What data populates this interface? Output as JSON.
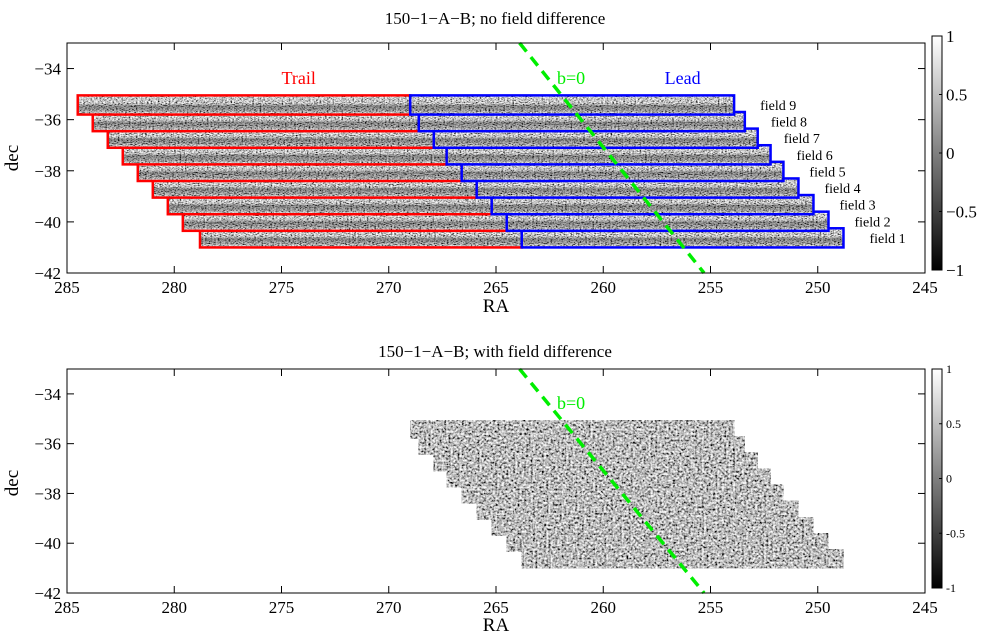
{
  "colors": {
    "trail": "#ff0000",
    "lead": "#0000ff",
    "galactic_plane": "#00ee00",
    "axis": "#000000",
    "background": "#ffffff"
  },
  "chart_data": [
    {
      "type": "heatmap",
      "title": "150−1−A−B; no field difference",
      "xlabel": "RA",
      "ylabel": "dec",
      "xlim": [
        285,
        245
      ],
      "ylim": [
        -42,
        -33
      ],
      "x_reversed": true,
      "xticks": [
        285,
        280,
        275,
        270,
        265,
        260,
        255,
        250,
        245
      ],
      "xtick_labels": [
        "285",
        "280",
        "275",
        "270",
        "265",
        "260",
        "255",
        "250",
        "245"
      ],
      "yticks": [
        -34,
        -36,
        -38,
        -40,
        -42
      ],
      "ytick_labels": [
        "−34",
        "−36",
        "−38",
        "−40",
        "−42"
      ],
      "grid": false,
      "colorbar": {
        "range": [
          -1,
          1
        ],
        "colormap": "gray",
        "ticks": [
          1,
          0.5,
          0,
          -0.5,
          -1
        ],
        "tick_labels": [
          "1",
          "0.5",
          "0",
          "−0.5",
          "−1"
        ]
      },
      "annotations": [
        {
          "text": "Trail",
          "color": "trail",
          "x": 274.2,
          "y": -34.6
        },
        {
          "text": "b=0",
          "color": "galactic_plane",
          "x": 261.5,
          "y": -34.6
        },
        {
          "text": "Lead",
          "color": "lead",
          "x": 256.3,
          "y": -34.6
        }
      ],
      "galactic_plane_line": {
        "label": "b=0",
        "x": [
          263.9,
          255.3
        ],
        "y": [
          -33.0,
          -42.0
        ]
      },
      "fields": [
        {
          "name": "field 1",
          "dec_range": [
            -41.0,
            -40.25
          ],
          "trail_ra": [
            278.8,
            263.8
          ],
          "lead_ra": [
            263.8,
            248.8
          ]
        },
        {
          "name": "field 2",
          "dec_range": [
            -40.35,
            -39.6
          ],
          "trail_ra": [
            279.6,
            264.5
          ],
          "lead_ra": [
            264.5,
            249.5
          ]
        },
        {
          "name": "field 3",
          "dec_range": [
            -39.7,
            -38.95
          ],
          "trail_ra": [
            280.3,
            265.2
          ],
          "lead_ra": [
            265.2,
            250.2
          ]
        },
        {
          "name": "field 4",
          "dec_range": [
            -39.05,
            -38.3
          ],
          "trail_ra": [
            281.0,
            265.9
          ],
          "lead_ra": [
            265.9,
            250.9
          ]
        },
        {
          "name": "field 5",
          "dec_range": [
            -38.4,
            -37.65
          ],
          "trail_ra": [
            281.7,
            266.6
          ],
          "lead_ra": [
            266.6,
            251.6
          ]
        },
        {
          "name": "field 6",
          "dec_range": [
            -37.75,
            -37.0
          ],
          "trail_ra": [
            282.4,
            267.3
          ],
          "lead_ra": [
            267.3,
            252.2
          ]
        },
        {
          "name": "field 7",
          "dec_range": [
            -37.1,
            -36.35
          ],
          "trail_ra": [
            283.1,
            267.9
          ],
          "lead_ra": [
            267.9,
            252.8
          ]
        },
        {
          "name": "field 8",
          "dec_range": [
            -36.45,
            -35.7
          ],
          "trail_ra": [
            283.8,
            268.6
          ],
          "lead_ra": [
            268.6,
            253.4
          ]
        },
        {
          "name": "field 9",
          "dec_range": [
            -35.8,
            -35.05
          ],
          "trail_ra": [
            284.5,
            269.0
          ],
          "lead_ra": [
            269.0,
            253.9
          ]
        }
      ]
    },
    {
      "type": "heatmap",
      "title": "150−1−A−B; with field difference",
      "xlabel": "RA",
      "ylabel": "dec",
      "xlim": [
        285,
        245
      ],
      "ylim": [
        -42,
        -33
      ],
      "x_reversed": true,
      "xticks": [
        285,
        280,
        275,
        270,
        265,
        260,
        255,
        250,
        245
      ],
      "xtick_labels": [
        "285",
        "280",
        "275",
        "270",
        "265",
        "260",
        "255",
        "250",
        "245"
      ],
      "yticks": [
        -34,
        -36,
        -38,
        -40,
        -42
      ],
      "ytick_labels": [
        "−34",
        "−36",
        "−38",
        "−40",
        "−42"
      ],
      "grid": false,
      "colorbar": {
        "range": [
          -1,
          1
        ],
        "colormap": "gray",
        "ticks": [
          1,
          0.5,
          0,
          -0.5,
          -1
        ],
        "tick_labels": [
          "1",
          "0.5",
          "0",
          "-0.5",
          "-1"
        ]
      },
      "annotations": [
        {
          "text": "b=0",
          "color": "galactic_plane",
          "x": 261.5,
          "y": -34.6
        }
      ],
      "galactic_plane_line": {
        "label": "b=0",
        "x": [
          263.9,
          255.3
        ],
        "y": [
          -33.0,
          -42.0
        ]
      },
      "map_rows": [
        {
          "dec_range": [
            -41.0,
            -40.25
          ],
          "ra": [
            263.8,
            248.8
          ]
        },
        {
          "dec_range": [
            -40.35,
            -39.6
          ],
          "ra": [
            264.5,
            249.5
          ]
        },
        {
          "dec_range": [
            -39.7,
            -38.95
          ],
          "ra": [
            265.2,
            250.2
          ]
        },
        {
          "dec_range": [
            -39.05,
            -38.3
          ],
          "ra": [
            265.9,
            250.9
          ]
        },
        {
          "dec_range": [
            -38.4,
            -37.65
          ],
          "ra": [
            266.6,
            251.6
          ]
        },
        {
          "dec_range": [
            -37.75,
            -37.0
          ],
          "ra": [
            267.3,
            252.2
          ]
        },
        {
          "dec_range": [
            -37.1,
            -36.35
          ],
          "ra": [
            267.9,
            252.8
          ]
        },
        {
          "dec_range": [
            -36.45,
            -35.7
          ],
          "ra": [
            268.6,
            253.4
          ]
        },
        {
          "dec_range": [
            -35.8,
            -35.05
          ],
          "ra": [
            269.0,
            253.9
          ]
        }
      ]
    }
  ]
}
